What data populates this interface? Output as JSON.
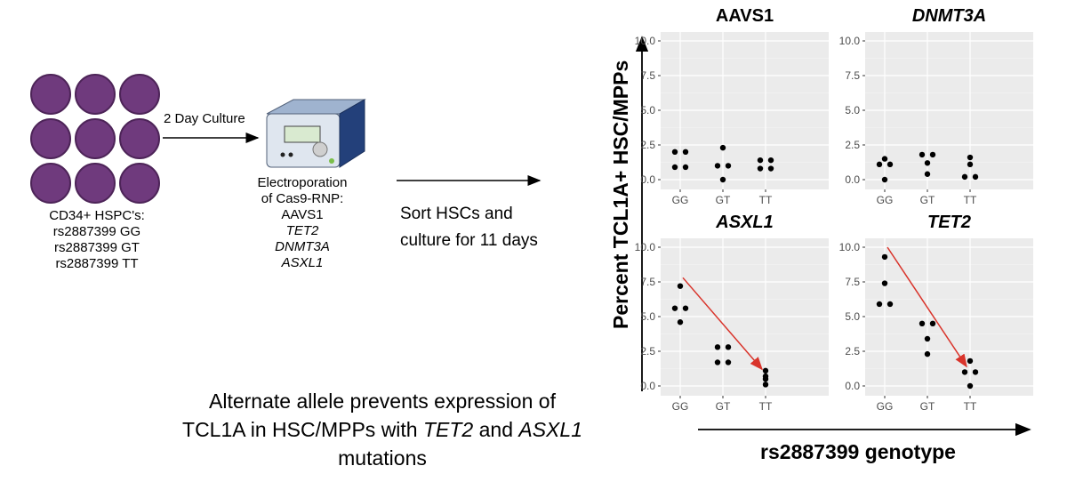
{
  "left": {
    "culture_label": "2 Day Culture",
    "cells_lines": [
      "CD34+ HSPC's:",
      "rs2887399 GG",
      "rs2887399 GT",
      "rs2887399 TT"
    ],
    "electro_lines": [
      {
        "text": "Electroporation",
        "italic": false
      },
      {
        "text": "of Cas9-RNP:",
        "italic": false
      },
      {
        "text": "AAVS1",
        "italic": false
      },
      {
        "text": "TET2",
        "italic": true
      },
      {
        "text": "DNMT3A",
        "italic": true
      },
      {
        "text": "ASXL1",
        "italic": true
      }
    ],
    "sort_lines": [
      "Sort HSCs and",
      "culture for 11 days"
    ]
  },
  "conclusion": {
    "line1": "Alternate allele prevents expression of",
    "line2_a": "TCL1A in HSC/MPPs with ",
    "line2_b": "TET2",
    "line2_c": " and ",
    "line2_d": "ASXL1",
    "line3": "mutations"
  },
  "chart_data": {
    "type": "scatter",
    "ylabel": "Percent TCL1A+ HSC/MPPs",
    "xlabel": "rs2887399 genotype",
    "categories": [
      "GG",
      "GT",
      "TT"
    ],
    "ylim": [
      0,
      10
    ],
    "yticks": [
      "0.0",
      "2.5",
      "5.0",
      "7.5",
      "10.0"
    ],
    "ytick_values": [
      0,
      2.5,
      5,
      7.5,
      10
    ],
    "panel_bg": "#ebebeb",
    "arrow_color": "#d9342b",
    "panels": [
      {
        "title": "AAVS1",
        "italic": false,
        "points": [
          {
            "x": "GG",
            "y": 2.0
          },
          {
            "x": "GG",
            "y": 2.0
          },
          {
            "x": "GG",
            "y": 0.9
          },
          {
            "x": "GG",
            "y": 0.9
          },
          {
            "x": "GT",
            "y": 2.3
          },
          {
            "x": "GT",
            "y": 1.0
          },
          {
            "x": "GT",
            "y": 1.0
          },
          {
            "x": "GT",
            "y": 0.0
          },
          {
            "x": "TT",
            "y": 1.4
          },
          {
            "x": "TT",
            "y": 1.4
          },
          {
            "x": "TT",
            "y": 0.8
          },
          {
            "x": "TT",
            "y": 0.8
          }
        ],
        "trend": null
      },
      {
        "title": "DNMT3A",
        "italic": true,
        "points": [
          {
            "x": "GG",
            "y": 1.5
          },
          {
            "x": "GG",
            "y": 1.1
          },
          {
            "x": "GG",
            "y": 1.1
          },
          {
            "x": "GG",
            "y": 0.0
          },
          {
            "x": "GT",
            "y": 1.8
          },
          {
            "x": "GT",
            "y": 1.8
          },
          {
            "x": "GT",
            "y": 1.2
          },
          {
            "x": "GT",
            "y": 0.4
          },
          {
            "x": "TT",
            "y": 1.6
          },
          {
            "x": "TT",
            "y": 1.1
          },
          {
            "x": "TT",
            "y": 0.2
          },
          {
            "x": "TT",
            "y": 0.2
          }
        ],
        "trend": null
      },
      {
        "title": "ASXL1",
        "italic": true,
        "points": [
          {
            "x": "GG",
            "y": 7.2
          },
          {
            "x": "GG",
            "y": 5.6
          },
          {
            "x": "GG",
            "y": 5.6
          },
          {
            "x": "GG",
            "y": 4.6
          },
          {
            "x": "GT",
            "y": 2.8
          },
          {
            "x": "GT",
            "y": 2.8
          },
          {
            "x": "GT",
            "y": 1.7
          },
          {
            "x": "GT",
            "y": 1.7
          },
          {
            "x": "TT",
            "y": 1.1
          },
          {
            "x": "TT",
            "y": 0.7
          },
          {
            "x": "TT",
            "y": 0.5
          },
          {
            "x": "TT",
            "y": 0.1
          }
        ],
        "trend": {
          "from": {
            "x": "GG",
            "y": 7.8
          },
          "to": {
            "x": "TT",
            "y": 1.2
          }
        }
      },
      {
        "title": "TET2",
        "italic": true,
        "points": [
          {
            "x": "GG",
            "y": 9.3
          },
          {
            "x": "GG",
            "y": 7.4
          },
          {
            "x": "GG",
            "y": 5.9
          },
          {
            "x": "GG",
            "y": 5.9
          },
          {
            "x": "GT",
            "y": 4.5
          },
          {
            "x": "GT",
            "y": 4.5
          },
          {
            "x": "GT",
            "y": 3.4
          },
          {
            "x": "GT",
            "y": 2.3
          },
          {
            "x": "TT",
            "y": 1.8
          },
          {
            "x": "TT",
            "y": 1.0
          },
          {
            "x": "TT",
            "y": 1.0
          },
          {
            "x": "TT",
            "y": 0.0
          }
        ],
        "trend": {
          "from": {
            "x": "GG",
            "y": 10.0
          },
          "to": {
            "x": "TT",
            "y": 1.4
          }
        }
      }
    ]
  }
}
